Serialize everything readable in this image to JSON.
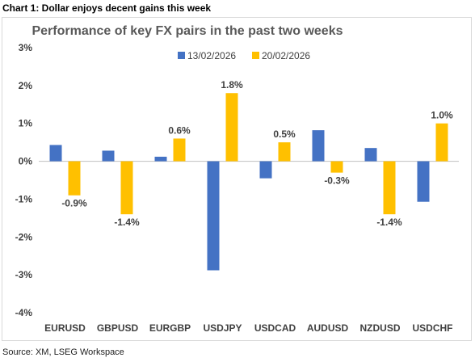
{
  "caption": "Chart 1: Dollar enjoys decent gains this week",
  "source": "Source: XM, LSEG Workspace",
  "chart_data": {
    "type": "bar",
    "title": "Performance of key FX pairs in the past two weeks",
    "categories": [
      "EURUSD",
      "GBPUSD",
      "EURGBP",
      "USDJPY",
      "USDCAD",
      "AUDUSD",
      "NZDUSD",
      "USDCHF"
    ],
    "series": [
      {
        "name": "13/02/2026",
        "color": "#4472C4",
        "values": [
          0.43,
          0.28,
          0.12,
          -2.88,
          -0.45,
          0.82,
          0.35,
          -1.07
        ]
      },
      {
        "name": "20/02/2026",
        "color": "#FFC000",
        "values": [
          -0.9,
          -1.4,
          0.6,
          1.8,
          0.5,
          -0.3,
          -1.4,
          1.0
        ]
      }
    ],
    "data_labels": {
      "series": "20/02/2026",
      "texts": [
        "-0.9%",
        "-1.4%",
        "0.6%",
        "1.8%",
        "0.5%",
        "-0.3%",
        "-1.4%",
        "1.0%"
      ]
    },
    "y_ticks": [
      3,
      2,
      1,
      0,
      -1,
      -2,
      -3,
      -4
    ],
    "y_tick_labels": [
      "3%",
      "2%",
      "1%",
      "0%",
      "-1%",
      "-2%",
      "-3%",
      "-4%"
    ],
    "ylim": [
      -4,
      3
    ],
    "grid": false,
    "legend": "top-center"
  }
}
